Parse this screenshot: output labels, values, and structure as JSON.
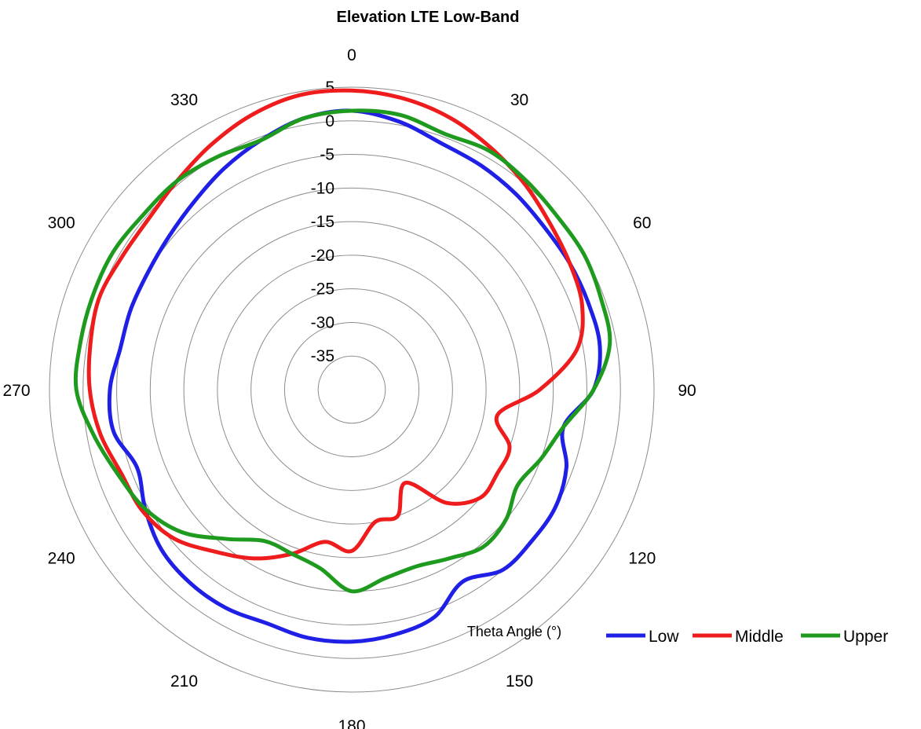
{
  "chart_data": {
    "type": "polar-line",
    "title": "Elevation LTE Low-Band",
    "xlabel": "Theta  Angle (°)",
    "radial_range": [
      -40,
      5
    ],
    "radial_ticks": [
      -35,
      -30,
      -25,
      -20,
      -15,
      -10,
      -5,
      0,
      5
    ],
    "radial_tick_labels": [
      "-35",
      "-30",
      "-25",
      "-20",
      "-15",
      "-10",
      "-5",
      "0",
      "5"
    ],
    "angle_ticks": [
      0,
      30,
      60,
      90,
      120,
      150,
      180,
      210,
      240,
      270,
      300,
      330
    ],
    "angle_tick_labels": [
      "0",
      "30",
      "60",
      "90",
      "120",
      "150",
      "180",
      "210",
      "240",
      "270",
      "300",
      "330"
    ],
    "direction": "clockwise",
    "zero_location": "top",
    "grid": true,
    "legend": "bottom-right",
    "theta": [
      0,
      10,
      20,
      30,
      40,
      50,
      60,
      70,
      80,
      90,
      100,
      110,
      120,
      130,
      140,
      150,
      160,
      170,
      180,
      190,
      200,
      210,
      220,
      230,
      240,
      250,
      260,
      270,
      280,
      290,
      300,
      310,
      320,
      330,
      340,
      350
    ],
    "series": [
      {
        "name": "Low",
        "color": "#1f1fe6",
        "values": [
          1.5,
          0.5,
          -1,
          -1.5,
          -2,
          -2.5,
          -2.5,
          -2.5,
          -2.5,
          -4,
          -8,
          -6,
          -5,
          -5,
          -5,
          -7,
          -4,
          -3,
          -2.5,
          -2.5,
          -3,
          -2.5,
          -2.5,
          -3,
          -4.5,
          -6,
          -4,
          -4,
          -5,
          -5,
          -5,
          -4.5,
          -3.5,
          -2,
          -0.5,
          1
        ]
      },
      {
        "name": "Middle",
        "color": "#ee1c1c",
        "values": [
          4.5,
          4,
          3,
          1.5,
          0,
          -1.5,
          -2.5,
          -3.5,
          -6,
          -12,
          -18,
          -15,
          -15,
          -15,
          -18,
          -24,
          -20,
          -20,
          -16,
          -17,
          -14,
          -11,
          -8.5,
          -5.5,
          -4,
          -3.5,
          -2,
          -1,
          -0.5,
          0,
          -0.5,
          -0.5,
          0.5,
          2,
          3.5,
          4.5
        ]
      },
      {
        "name": "Upper",
        "color": "#1e9a1e",
        "values": [
          1.5,
          1.5,
          0.5,
          1,
          0.5,
          0,
          0,
          -0.5,
          -1,
          -4,
          -8,
          -10,
          -11.5,
          -10,
          -9.5,
          -11,
          -12,
          -11.5,
          -10,
          -13,
          -14,
          -14,
          -11,
          -7,
          -4.5,
          -3,
          -1,
          1,
          1,
          1,
          1,
          0.5,
          0.5,
          0,
          -0.5,
          1
        ]
      }
    ]
  }
}
